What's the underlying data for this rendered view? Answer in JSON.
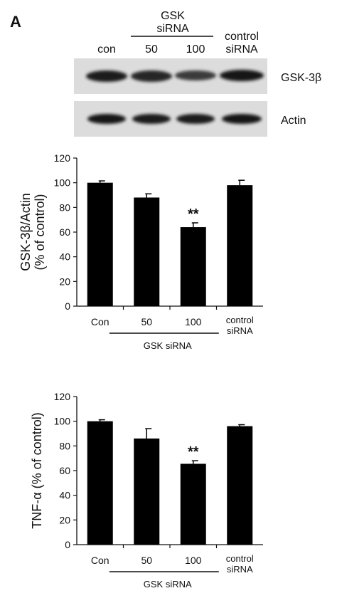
{
  "panel_label": "A",
  "blot": {
    "group_label_line1": "GSK",
    "group_label_line2": "siRNA",
    "lane_labels": [
      "con",
      "50",
      "100"
    ],
    "control_label_line1": "control",
    "control_label_line2": "siRNA",
    "band_labels": [
      "GSK-3β",
      "Actin"
    ]
  },
  "chart_data": [
    {
      "type": "bar",
      "categories": [
        "Con",
        "50",
        "100",
        "control siRNA"
      ],
      "values": [
        100,
        88,
        64,
        98
      ],
      "errors": [
        1.5,
        3,
        3.5,
        4
      ],
      "significance": [
        "",
        "",
        "**",
        ""
      ],
      "ylabel_line1": "GSK-3β/Actin",
      "ylabel_line2": "(% of control)",
      "ylim": [
        0,
        120
      ],
      "yticks": [
        0,
        20,
        40,
        60,
        80,
        100,
        120
      ],
      "group_label": "GSK siRNA",
      "grid": false,
      "bar_color": "#000000"
    },
    {
      "type": "bar",
      "categories": [
        "Con",
        "50",
        "100",
        "control siRNA"
      ],
      "values": [
        100,
        86,
        65.5,
        96
      ],
      "errors": [
        1.2,
        8,
        2.5,
        1.2
      ],
      "significance": [
        "",
        "",
        "**",
        ""
      ],
      "ylabel": "TNF-α (% of control)",
      "ylim": [
        0,
        120
      ],
      "yticks": [
        0,
        20,
        40,
        60,
        80,
        100,
        120
      ],
      "group_label": "GSK siRNA",
      "grid": false,
      "bar_color": "#000000"
    }
  ]
}
